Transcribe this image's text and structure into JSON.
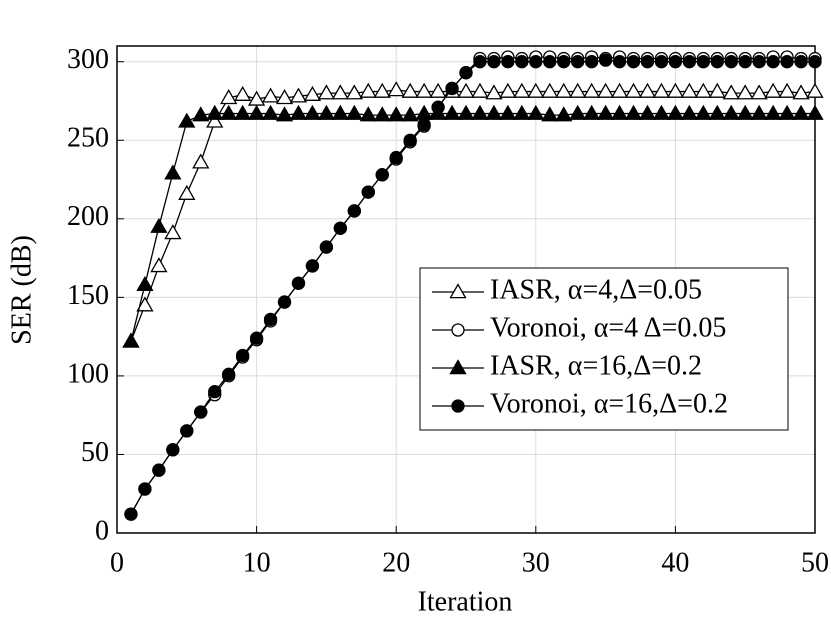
{
  "chart_data": {
    "type": "line",
    "x_label": "Iteration",
    "y_label": "SER (dB)",
    "x": [
      1,
      2,
      3,
      4,
      5,
      6,
      7,
      8,
      9,
      10,
      11,
      12,
      13,
      14,
      15,
      16,
      17,
      18,
      19,
      20,
      21,
      22,
      23,
      24,
      25,
      26,
      27,
      28,
      29,
      30,
      31,
      32,
      33,
      34,
      35,
      36,
      37,
      38,
      39,
      40,
      41,
      42,
      43,
      44,
      45,
      46,
      47,
      48,
      49,
      50
    ],
    "series": [
      {
        "name": "IASR, α=4,Δ=0.05",
        "color": "#000000",
        "marker": "triangle",
        "filled": false,
        "values": [
          122,
          145,
          170,
          191,
          216,
          236,
          262,
          277,
          279,
          276,
          278,
          277,
          278,
          279,
          280,
          280,
          280,
          281,
          281,
          282,
          281,
          281,
          281,
          281,
          281,
          281,
          280,
          281,
          281,
          281,
          281,
          281,
          281,
          281,
          281,
          281,
          281,
          281,
          281,
          281,
          281,
          281,
          281,
          280,
          280,
          280,
          281,
          281,
          280,
          281
        ]
      },
      {
        "name": "Voronoi, α=4 Δ=0.05",
        "color": "#000000",
        "marker": "circle",
        "filled": false,
        "values": [
          12,
          28,
          40,
          53,
          65,
          77,
          88,
          100,
          112,
          123,
          135,
          147,
          159,
          170,
          182,
          194,
          205,
          217,
          228,
          238,
          249,
          259,
          271,
          283,
          293,
          302,
          302,
          303,
          302,
          303,
          303,
          302,
          302,
          303,
          302,
          303,
          302,
          302,
          302,
          302,
          302,
          302,
          302,
          302,
          302,
          302,
          303,
          303,
          302,
          302
        ]
      },
      {
        "name": "IASR, α=16,Δ=0.2",
        "color": "#000000",
        "marker": "triangle",
        "filled": true,
        "values": [
          122,
          158,
          195,
          229,
          262,
          266,
          267,
          267,
          267,
          267,
          267,
          266,
          267,
          267,
          267,
          267,
          267,
          266,
          266,
          266,
          266,
          267,
          267,
          267,
          267,
          267,
          267,
          267,
          267,
          267,
          266,
          266,
          267,
          267,
          267,
          267,
          267,
          267,
          267,
          267,
          267,
          267,
          267,
          267,
          267,
          267,
          267,
          267,
          267,
          267
        ]
      },
      {
        "name": "Voronoi, α=16,Δ=0.2",
        "color": "#000000",
        "marker": "circle",
        "filled": true,
        "values": [
          12,
          28,
          40,
          53,
          65,
          77,
          90,
          101,
          113,
          124,
          136,
          147,
          159,
          170,
          182,
          194,
          205,
          217,
          228,
          239,
          250,
          260,
          271,
          283,
          293,
          300,
          300,
          300,
          300,
          300,
          300,
          300,
          300,
          300,
          301,
          300,
          300,
          300,
          300,
          300,
          300,
          300,
          300,
          300,
          300,
          300,
          300,
          300,
          300,
          300
        ]
      }
    ],
    "xlim": [
      0,
      50
    ],
    "ylim": [
      0,
      310
    ],
    "xticks": [
      0,
      10,
      20,
      30,
      40,
      50
    ],
    "yticks": [
      0,
      50,
      100,
      150,
      200,
      250,
      300
    ],
    "grid": true,
    "legend": "right"
  }
}
